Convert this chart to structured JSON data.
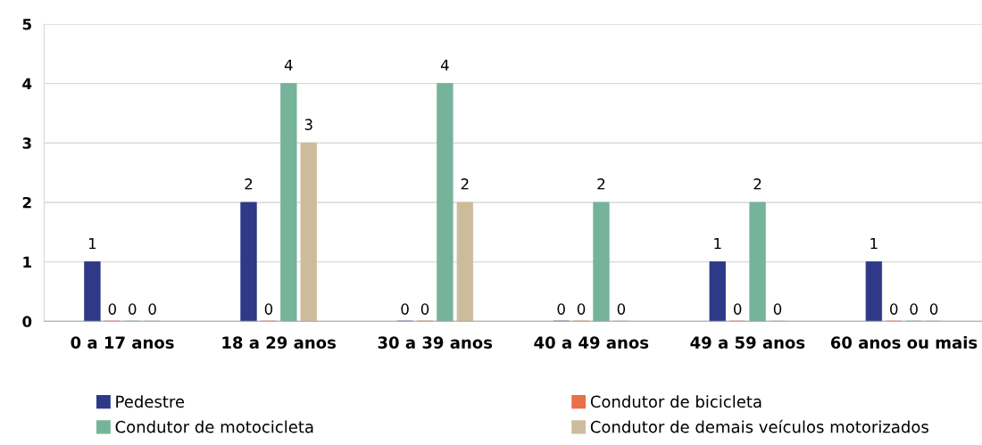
{
  "chart_data": {
    "type": "bar",
    "categories": [
      "0 a 17 anos",
      "18 a 29 anos",
      "30 a 39 anos",
      "40 a 49 anos",
      "49 a 59 anos",
      "60 anos ou mais"
    ],
    "series": [
      {
        "name": "Pedestre",
        "color": "#2e3a87",
        "values": [
          1,
          2,
          0,
          0,
          1,
          1
        ]
      },
      {
        "name": "Condutor de bicicleta",
        "color": "#e8704a",
        "values": [
          0,
          0,
          0,
          0,
          0,
          0
        ]
      },
      {
        "name": "Condutor de motocicleta",
        "color": "#76b39b",
        "values": [
          0,
          4,
          4,
          2,
          2,
          0
        ]
      },
      {
        "name": "Condutor de demais veículos motorizados",
        "color": "#cdbc9c",
        "values": [
          0,
          3,
          2,
          0,
          0,
          0
        ]
      }
    ],
    "ylim": [
      0,
      5
    ],
    "yticks": [
      0,
      1,
      2,
      3,
      4,
      5
    ],
    "grid": "y",
    "legend": "bottom",
    "data_labels": true
  }
}
